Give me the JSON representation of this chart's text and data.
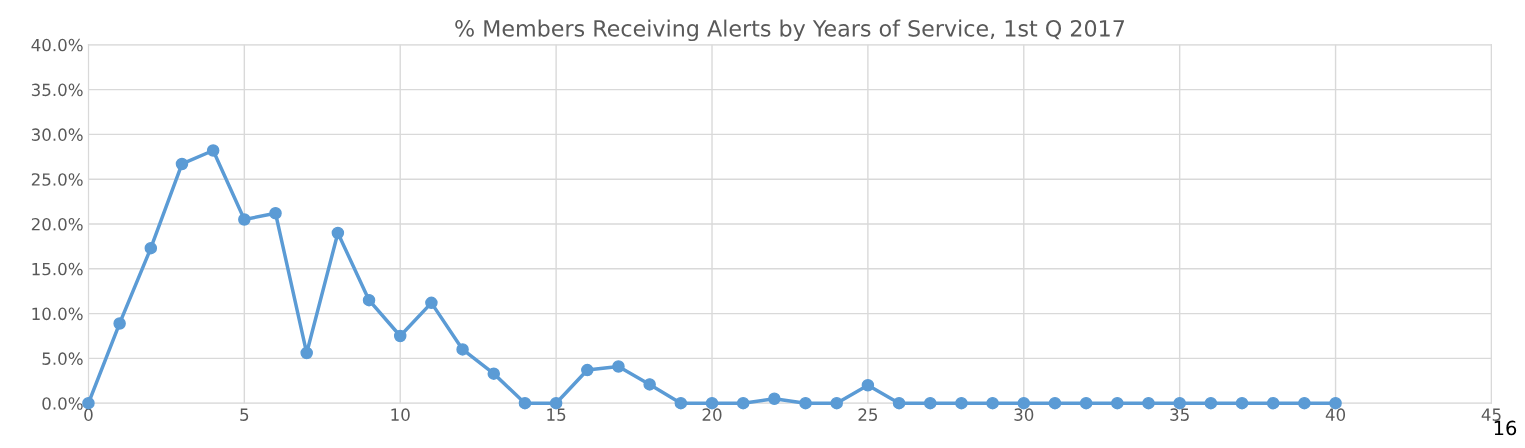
{
  "chart_data": {
    "type": "line",
    "title": "% Members Receiving Alerts by Years of Service, 1st Q 2017",
    "x": [
      0,
      1,
      2,
      3,
      4,
      5,
      6,
      7,
      8,
      9,
      10,
      11,
      12,
      13,
      14,
      15,
      16,
      17,
      18,
      19,
      20,
      21,
      22,
      23,
      24,
      25,
      26,
      27,
      28,
      29,
      30,
      31,
      32,
      33,
      34,
      35,
      36,
      37,
      38,
      39,
      40
    ],
    "series": [
      {
        "color": "#5b9bd5",
        "values": [
          0,
          8.9,
          17.3,
          26.7,
          28.2,
          20.5,
          21.2,
          5.6,
          19.0,
          11.5,
          7.5,
          11.2,
          6.0,
          3.3,
          0,
          0,
          3.7,
          4.1,
          2.1,
          0,
          0,
          0,
          0.5,
          0,
          0,
          2.0,
          0,
          0,
          0,
          0,
          0,
          0,
          0,
          0,
          0,
          0,
          0,
          0,
          0,
          0,
          0
        ]
      }
    ],
    "xlim": [
      0,
      45
    ],
    "xticks": [
      0,
      5,
      10,
      15,
      20,
      25,
      30,
      35,
      40,
      45
    ],
    "ylim": [
      0,
      40
    ],
    "yticks": [
      {
        "value": 0,
        "label": "0.0%"
      },
      {
        "value": 5,
        "label": "5.0%"
      },
      {
        "value": 10,
        "label": "10.0%"
      },
      {
        "value": 15,
        "label": "15.0%"
      },
      {
        "value": 20,
        "label": "20.0%"
      },
      {
        "value": 25,
        "label": "25.0%"
      },
      {
        "value": 30,
        "label": "30.0%"
      },
      {
        "value": 35,
        "label": "35.0%"
      },
      {
        "value": 40,
        "label": "40.0%"
      }
    ],
    "grid": true,
    "marker": "circle",
    "line_style": "solid",
    "annotations": [
      "16"
    ]
  }
}
